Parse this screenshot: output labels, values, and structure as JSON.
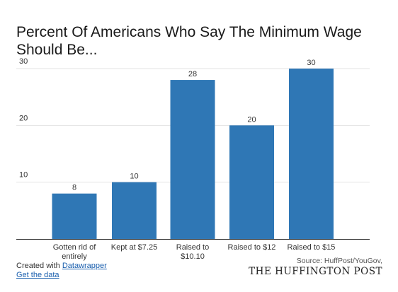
{
  "chart_data": {
    "type": "bar",
    "title": "Percent Of Americans Who Say The Minimum Wage Should Be...",
    "categories": [
      "Gotten rid of entirely",
      "Kept at $7.25",
      "Raised to $10.10",
      "Raised to $12",
      "Raised to $15"
    ],
    "category_lines": [
      [
        "Gotten rid of",
        "entirely"
      ],
      [
        "Kept at $7.25"
      ],
      [
        "Raised to",
        "$10.10"
      ],
      [
        "Raised to $12"
      ],
      [
        "Raised to $15"
      ]
    ],
    "values": [
      8,
      10,
      28,
      20,
      30
    ],
    "value_labels": [
      "8",
      "10",
      "28",
      "20",
      "30"
    ],
    "yticks": [
      10,
      20,
      30
    ],
    "ytick_labels": [
      "10",
      "20",
      "30"
    ],
    "ylim": [
      0,
      30
    ],
    "xlabel": "",
    "ylabel": "",
    "grid": true,
    "legend": "none",
    "bar_color": "#2f77b5",
    "grid_color": "#e3e3e3",
    "axis_color": "#333333"
  },
  "footer": {
    "created_with": "Created with",
    "tool_link": "Datawrapper",
    "data_link": "Get the data",
    "source": "Source: HuffPost/YouGov,",
    "brand": "THE HUFFINGTON POST"
  }
}
